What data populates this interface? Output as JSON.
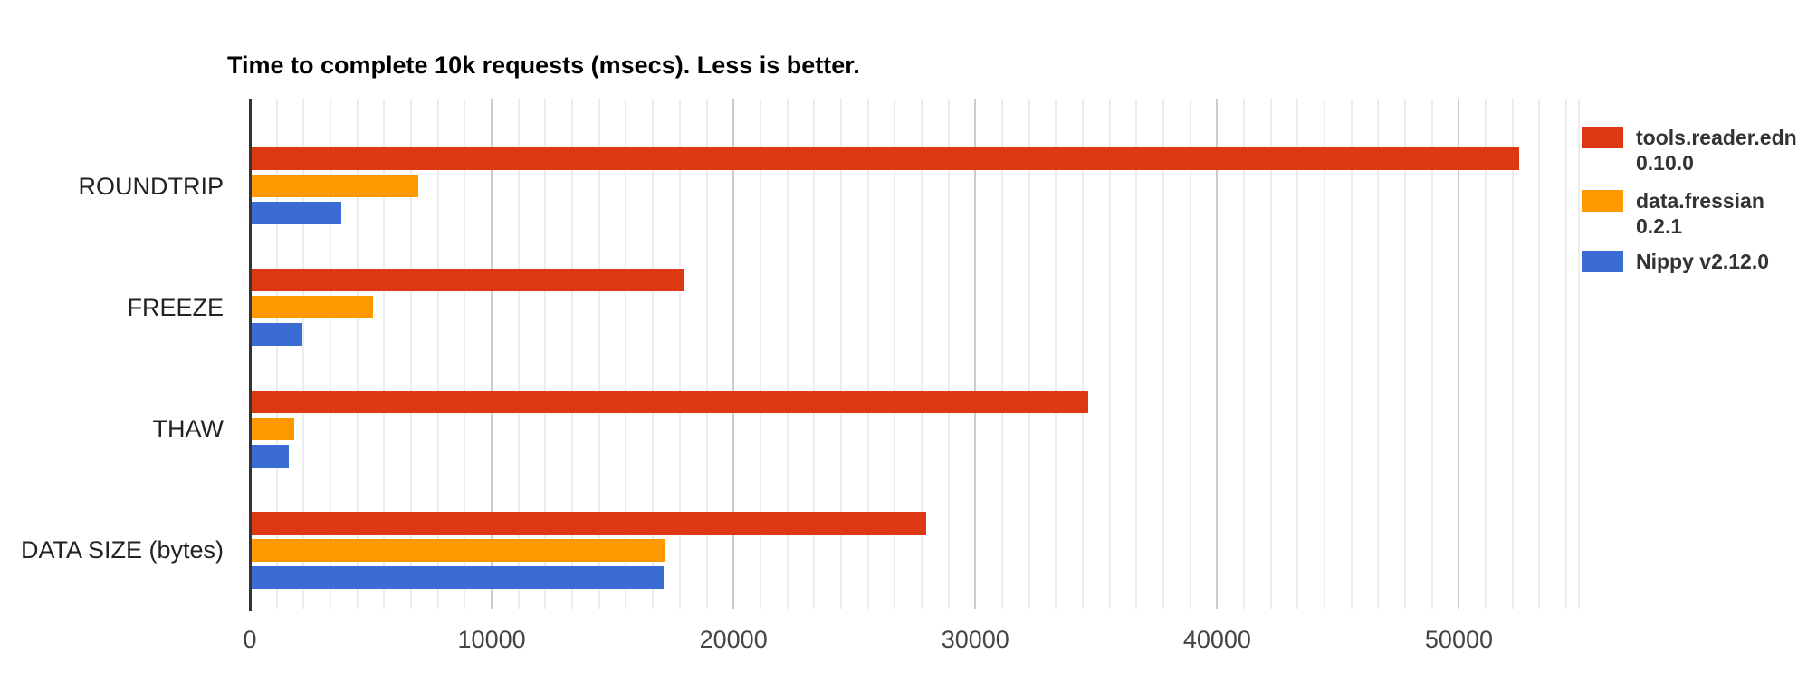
{
  "chart_data": {
    "type": "bar",
    "orientation": "horizontal",
    "title": "Time to complete 10k requests (msecs). Less is better.",
    "categories": [
      "ROUNDTRIP",
      "FREEZE",
      "THAW",
      "DATA SIZE (bytes)"
    ],
    "series": [
      {
        "name": "tools.reader.edn 0.10.0",
        "legend_lines": [
          "tools.reader.edn",
          "0.10.0"
        ],
        "color": "#dc3912",
        "values": [
          52400,
          17900,
          34600,
          27900
        ]
      },
      {
        "name": "data.fressian 0.2.1",
        "legend_lines": [
          "data.fressian",
          "0.2.1"
        ],
        "color": "#ff9900",
        "values": [
          6900,
          5000,
          1750,
          17100
        ]
      },
      {
        "name": "Nippy v2.12.0",
        "legend_lines": [
          "Nippy v2.12.0"
        ],
        "color": "#3b6cd4",
        "values": [
          3700,
          2100,
          1550,
          17050
        ]
      }
    ],
    "x_axis": {
      "min": 0,
      "max": 55000,
      "tick_interval": 10000,
      "tick_values": [
        0,
        10000,
        20000,
        30000,
        40000,
        50000
      ],
      "tick_labels": [
        "0",
        "10000",
        "20000",
        "30000",
        "40000",
        "50000"
      ],
      "minor_gridlines_per_major": 8
    },
    "grid": true,
    "legend_position": "right"
  }
}
